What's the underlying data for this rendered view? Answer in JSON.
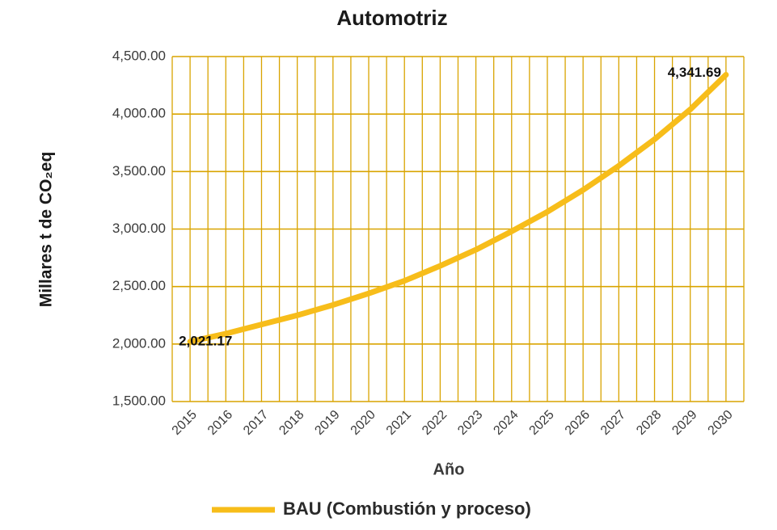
{
  "chart_data": {
    "type": "line",
    "title": "Automotriz",
    "x_label": "Año",
    "y_label": "Millares t de CO₂eq",
    "categories": [
      "2015",
      "2016",
      "2017",
      "2018",
      "2019",
      "2020",
      "2021",
      "2022",
      "2023",
      "2024",
      "2025",
      "2026",
      "2027",
      "2028",
      "2029",
      "2030"
    ],
    "series": [
      {
        "name": "BAU (Combustión y proceso)",
        "color": "#f7bd1a",
        "values": [
          2021.17,
          2090,
          2170,
          2250,
          2340,
          2440,
          2550,
          2680,
          2820,
          2980,
          3150,
          3340,
          3550,
          3780,
          4040,
          4341.69
        ],
        "value_labels": [
          "2,021.17",
          null,
          null,
          null,
          null,
          null,
          null,
          null,
          null,
          null,
          null,
          null,
          null,
          null,
          null,
          "4,341.69"
        ]
      }
    ],
    "ylim": [
      1500,
      4500
    ],
    "yticks": [
      {
        "value": 1500,
        "label": "1,500.00"
      },
      {
        "value": 2000,
        "label": "2,000.00"
      },
      {
        "value": 2500,
        "label": "2,500.00"
      },
      {
        "value": 3000,
        "label": "3,000.00"
      },
      {
        "value": 3500,
        "label": "3,500.00"
      },
      {
        "value": 4000,
        "label": "4,000.00"
      },
      {
        "value": 4500,
        "label": "4,500.00"
      }
    ],
    "grid": true,
    "grid_color": "#d9a400",
    "legend": "bottom"
  }
}
